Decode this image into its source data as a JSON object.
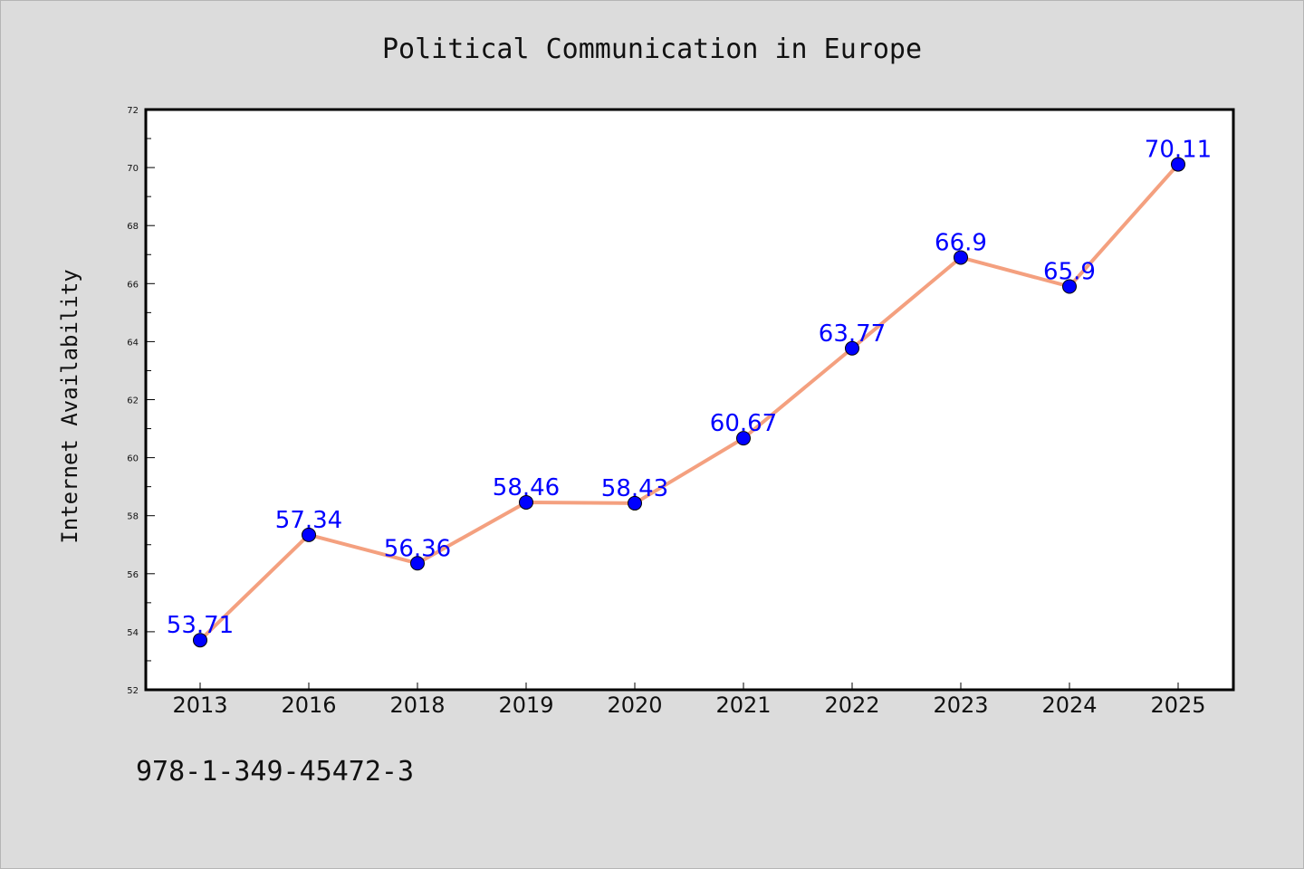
{
  "chart_data": {
    "type": "line",
    "title": "Political Communication in Europe",
    "xlabel": "",
    "ylabel": "Internet Availability",
    "categories": [
      "2013",
      "2016",
      "2018",
      "2019",
      "2020",
      "2021",
      "2022",
      "2023",
      "2024",
      "2025"
    ],
    "series": [
      {
        "values": [
          53.71,
          57.34,
          56.36,
          58.46,
          58.43,
          60.67,
          63.77,
          66.9,
          65.9,
          70.11
        ],
        "labels": [
          "53.71",
          "57.34",
          "56.36",
          "58.46",
          "58.43",
          "60.67",
          "63.77",
          "66.9",
          "65.9",
          "70.11"
        ],
        "line_color": "#f4a07f",
        "marker_color": "#0000ff"
      }
    ],
    "ylim": [
      52,
      72
    ],
    "yticks": [
      "52",
      "54",
      "56",
      "58",
      "60",
      "62",
      "64",
      "66",
      "68",
      "70",
      "72"
    ],
    "grid": false,
    "legend": "none"
  },
  "footnote": "978-1-349-45472-3",
  "colors": {
    "background": "#dcdcdc",
    "plot_background": "#ffffff",
    "label_color": "#0000ff"
  }
}
